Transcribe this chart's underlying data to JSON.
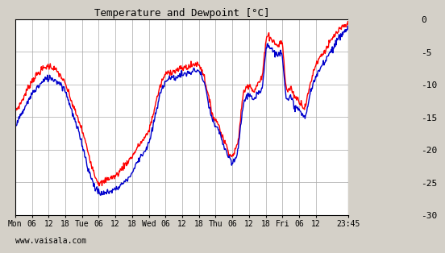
{
  "title": "Temperature and Dewpoint [°C]",
  "background_color": "#d4d0c8",
  "plot_bg_color": "#ffffff",
  "right_bg_color": "#d4d0c8",
  "outer_bg_color": "#d4d0c8",
  "grid_color": "#aaaaaa",
  "temp_color": "#ff0000",
  "dew_color": "#0000cc",
  "ylim": [
    -30,
    0
  ],
  "yticks": [
    0,
    -5,
    -10,
    -15,
    -20,
    -25,
    -30
  ],
  "xtick_labels": [
    "Mon",
    "06",
    "12",
    "18",
    "Tue",
    "06",
    "12",
    "18",
    "Wed",
    "06",
    "12",
    "18",
    "Thu",
    "06",
    "12",
    "18",
    "Fri",
    "06",
    "12",
    "23:45"
  ],
  "xtick_pos": [
    0,
    6,
    12,
    18,
    24,
    30,
    36,
    42,
    48,
    54,
    60,
    66,
    72,
    78,
    84,
    90,
    96,
    102,
    108,
    119.75
  ],
  "xlim": [
    0,
    119.75
  ],
  "watermark": "www.vaisala.com",
  "line_width": 1.0,
  "n_points": 600,
  "temp_pts": [
    [
      0,
      -14.0
    ],
    [
      3,
      -12.0
    ],
    [
      6,
      -9.5
    ],
    [
      9,
      -8.0
    ],
    [
      12,
      -7.2
    ],
    [
      15,
      -8.0
    ],
    [
      18,
      -10.0
    ],
    [
      21,
      -13.5
    ],
    [
      24,
      -17.0
    ],
    [
      26,
      -20.0
    ],
    [
      28,
      -23.0
    ],
    [
      30,
      -25.0
    ],
    [
      33,
      -24.5
    ],
    [
      36,
      -24.0
    ],
    [
      39,
      -22.5
    ],
    [
      42,
      -21.0
    ],
    [
      45,
      -19.0
    ],
    [
      48,
      -17.0
    ],
    [
      51,
      -12.0
    ],
    [
      54,
      -8.5
    ],
    [
      57,
      -8.0
    ],
    [
      60,
      -7.5
    ],
    [
      63,
      -7.2
    ],
    [
      66,
      -7.0
    ],
    [
      68,
      -9.0
    ],
    [
      70,
      -13.0
    ],
    [
      72,
      -15.5
    ],
    [
      73,
      -16.0
    ],
    [
      74,
      -17.5
    ],
    [
      75,
      -18.5
    ],
    [
      76,
      -19.5
    ],
    [
      77,
      -20.5
    ],
    [
      78,
      -21.0
    ],
    [
      79,
      -20.0
    ],
    [
      80,
      -19.0
    ],
    [
      81,
      -15.0
    ],
    [
      82,
      -11.5
    ],
    [
      83,
      -10.5
    ],
    [
      84,
      -10.0
    ],
    [
      85,
      -10.5
    ],
    [
      86,
      -11.0
    ],
    [
      87,
      -10.0
    ],
    [
      88,
      -9.5
    ],
    [
      89,
      -8.0
    ],
    [
      90,
      -3.5
    ],
    [
      91,
      -2.5
    ],
    [
      92,
      -3.0
    ],
    [
      93,
      -3.5
    ],
    [
      94,
      -4.0
    ],
    [
      95,
      -3.8
    ],
    [
      96,
      -4.0
    ],
    [
      97,
      -9.0
    ],
    [
      98,
      -11.0
    ],
    [
      99,
      -10.5
    ],
    [
      100,
      -11.5
    ],
    [
      101,
      -12.0
    ],
    [
      102,
      -12.5
    ],
    [
      103,
      -13.0
    ],
    [
      104,
      -13.5
    ],
    [
      105,
      -12.0
    ],
    [
      106,
      -10.0
    ],
    [
      108,
      -7.0
    ],
    [
      111,
      -5.0
    ],
    [
      114,
      -3.0
    ],
    [
      117,
      -1.5
    ],
    [
      119.75,
      -0.8
    ]
  ],
  "dew_pts": [
    [
      0,
      -16.0
    ],
    [
      3,
      -14.0
    ],
    [
      6,
      -11.5
    ],
    [
      9,
      -10.0
    ],
    [
      12,
      -9.0
    ],
    [
      15,
      -9.5
    ],
    [
      18,
      -11.0
    ],
    [
      21,
      -15.0
    ],
    [
      24,
      -19.0
    ],
    [
      26,
      -22.5
    ],
    [
      28,
      -25.0
    ],
    [
      30,
      -26.5
    ],
    [
      33,
      -26.5
    ],
    [
      36,
      -26.0
    ],
    [
      39,
      -25.0
    ],
    [
      42,
      -23.5
    ],
    [
      45,
      -21.0
    ],
    [
      48,
      -19.0
    ],
    [
      51,
      -13.5
    ],
    [
      54,
      -9.5
    ],
    [
      57,
      -9.0
    ],
    [
      60,
      -8.5
    ],
    [
      63,
      -8.2
    ],
    [
      66,
      -8.0
    ],
    [
      68,
      -10.0
    ],
    [
      70,
      -14.0
    ],
    [
      72,
      -16.5
    ],
    [
      73,
      -17.0
    ],
    [
      74,
      -18.0
    ],
    [
      75,
      -19.5
    ],
    [
      76,
      -20.5
    ],
    [
      77,
      -21.5
    ],
    [
      78,
      -22.0
    ],
    [
      79,
      -21.5
    ],
    [
      80,
      -20.0
    ],
    [
      81,
      -16.5
    ],
    [
      82,
      -13.0
    ],
    [
      83,
      -12.0
    ],
    [
      84,
      -11.5
    ],
    [
      85,
      -12.0
    ],
    [
      86,
      -12.5
    ],
    [
      87,
      -11.5
    ],
    [
      88,
      -11.0
    ],
    [
      89,
      -9.5
    ],
    [
      90,
      -5.0
    ],
    [
      91,
      -4.0
    ],
    [
      92,
      -4.5
    ],
    [
      93,
      -5.0
    ],
    [
      94,
      -5.5
    ],
    [
      95,
      -5.2
    ],
    [
      96,
      -5.5
    ],
    [
      97,
      -10.5
    ],
    [
      98,
      -12.5
    ],
    [
      99,
      -12.0
    ],
    [
      100,
      -13.0
    ],
    [
      101,
      -13.5
    ],
    [
      102,
      -14.0
    ],
    [
      103,
      -14.5
    ],
    [
      104,
      -15.0
    ],
    [
      105,
      -13.5
    ],
    [
      106,
      -11.5
    ],
    [
      108,
      -9.0
    ],
    [
      111,
      -6.5
    ],
    [
      114,
      -4.5
    ],
    [
      117,
      -2.5
    ],
    [
      119.75,
      -1.5
    ]
  ]
}
